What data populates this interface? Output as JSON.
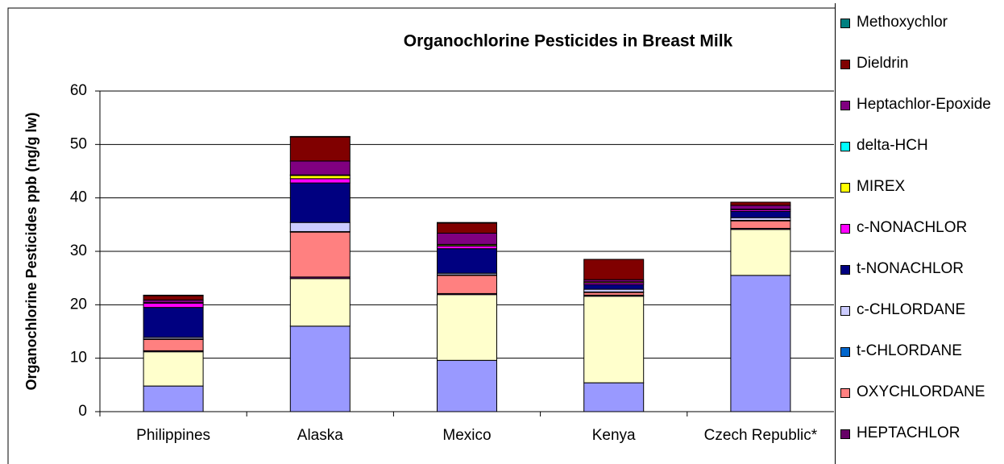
{
  "chart_data": {
    "type": "stacked_bar",
    "title": "Organochlorine  Pesticides  in Breast Milk",
    "y_label": "Organochlorine Pesticides ppb (ng/g lw)",
    "categories": [
      "Philippines",
      "Alaska",
      "Mexico",
      "Kenya",
      "Czech Republic*"
    ],
    "ylim": [
      0,
      60
    ],
    "yticks": [
      0,
      10,
      20,
      30,
      40,
      50,
      60
    ],
    "grid": true,
    "series": [
      {
        "color": "#9999FF",
        "values": [
          4.8,
          16.0,
          9.6,
          5.4,
          25.5
        ]
      },
      {
        "color": "#FFFFCC",
        "values": [
          6.4,
          8.9,
          12.3,
          16.2,
          8.6
        ]
      },
      {
        "name": "HEPTACHLOR",
        "color": "#660066",
        "values": [
          0.2,
          0.3,
          0.2,
          0.2,
          0.2
        ]
      },
      {
        "name": "OXYCHLORDANE",
        "color": "#FF8080",
        "values": [
          2.1,
          8.4,
          3.4,
          0.5,
          1.4
        ]
      },
      {
        "name": "t-CHLORDANE",
        "color": "#0066CC",
        "values": [
          0.1,
          0.1,
          0.1,
          0.1,
          0.1
        ]
      },
      {
        "name": "c-CHLORDANE",
        "color": "#CCCCFF",
        "values": [
          0.3,
          1.7,
          0.3,
          0.5,
          0.5
        ]
      },
      {
        "name": "t-NONACHLOR",
        "color": "#000080",
        "values": [
          5.6,
          7.4,
          4.6,
          0.9,
          1.2
        ]
      },
      {
        "name": "c-NONACHLOR",
        "color": "#FF00FF",
        "values": [
          0.8,
          0.8,
          0.5,
          0.3,
          0.3
        ]
      },
      {
        "name": "MIREX",
        "color": "#FFFF00",
        "values": [
          0.1,
          0.6,
          0.2,
          0.2,
          0.1
        ]
      },
      {
        "name": "delta-HCH",
        "color": "#00FFFF",
        "values": [
          0,
          0.1,
          0.1,
          0,
          0
        ]
      },
      {
        "name": "Heptachlor-Epoxide",
        "color": "#800080",
        "values": [
          0.5,
          2.6,
          2.1,
          0.4,
          0.7
        ]
      },
      {
        "name": "Dieldrin",
        "color": "#800000",
        "values": [
          0.8,
          4.5,
          1.9,
          3.8,
          0.6
        ]
      },
      {
        "name": "Methoxychlor",
        "color": "#008080",
        "values": [
          0.1,
          0.1,
          0.1,
          0,
          0
        ]
      }
    ]
  }
}
